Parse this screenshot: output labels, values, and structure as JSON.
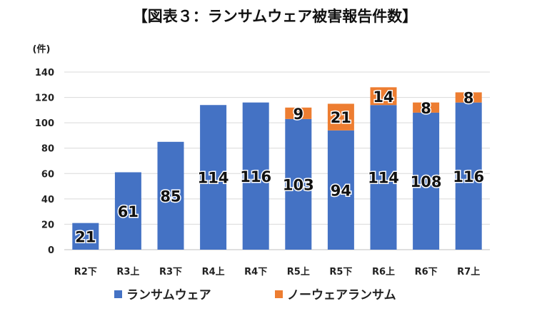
{
  "chart_data": {
    "type": "bar",
    "stacked": true,
    "title": "【図表３：ランサムウェア被害報告件数】",
    "ylabel": "(件)",
    "xlabel": "",
    "ylim": [
      0,
      140
    ],
    "yticks": [
      0,
      20,
      40,
      60,
      80,
      100,
      120,
      140
    ],
    "grid": true,
    "legend_position": "bottom",
    "categories": [
      "R2下",
      "R3上",
      "R3下",
      "R4上",
      "R4下",
      "R5上",
      "R5下",
      "R6上",
      "R6下",
      "R7上"
    ],
    "series": [
      {
        "name": "ランサムウェア",
        "color": "#4472C4",
        "values": [
          21,
          61,
          85,
          114,
          116,
          103,
          94,
          114,
          108,
          116
        ]
      },
      {
        "name": "ノーウェアランサム",
        "color": "#ED7D31",
        "values": [
          0,
          0,
          0,
          0,
          0,
          9,
          21,
          14,
          8,
          8
        ]
      }
    ]
  }
}
